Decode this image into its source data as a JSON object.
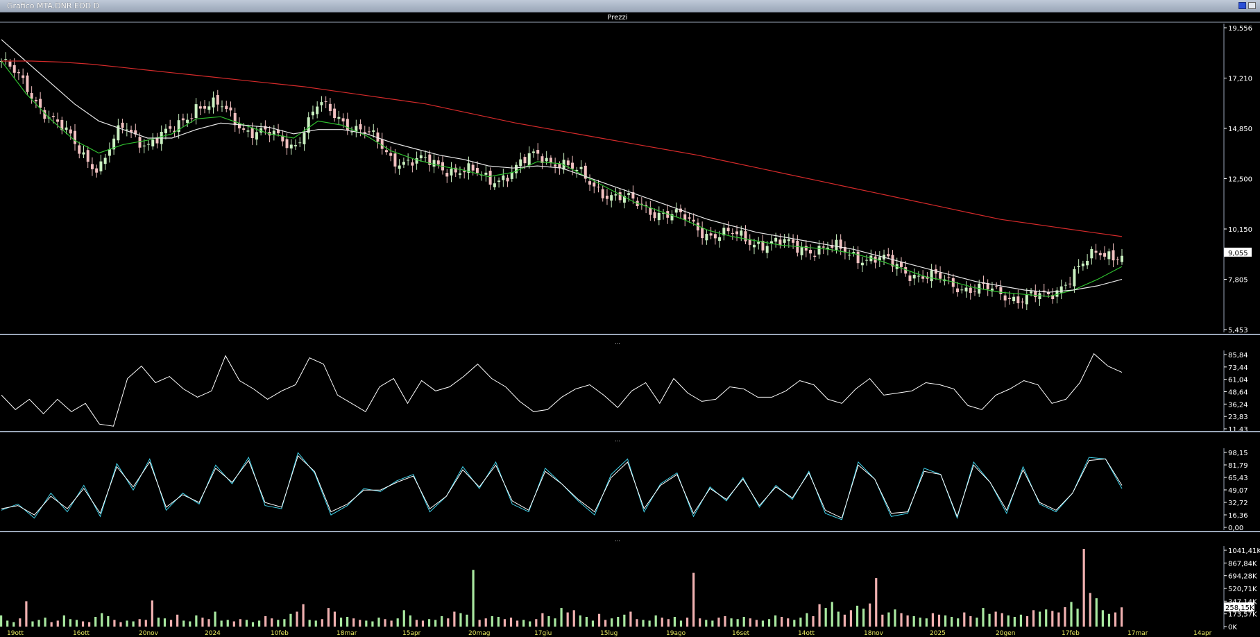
{
  "window": {
    "title": "Grafico MTA.DNR EOD D",
    "price_panel_title": "Prezzi",
    "separator_glyph": "..."
  },
  "colors": {
    "background": "#000000",
    "axis_text": "#ffffff",
    "panel_border": "#9aa6b8",
    "candle_up": "#c9f0c0",
    "candle_down": "#f1c0c0",
    "ma_short": "#2fbf2f",
    "ma_medium": "#e8e8e8",
    "ma_long": "#d42a2a",
    "oscillator_line": "#ffffff",
    "stoch_k": "#40d0e8",
    "stoch_d": "#ffffff",
    "volume_up": "#a8e8a0",
    "volume_down": "#f0b0b0",
    "date_tick": "#e8e860",
    "date_tick_alt": "#ff4040"
  },
  "chart_data": [
    {
      "type": "candlestick",
      "name": "Prezzi",
      "y_ticks": [
        "19,556",
        "17,210",
        "14,850",
        "12,500",
        "10,150",
        "7,805",
        "5,453"
      ],
      "ylim": [
        5.453,
        19.556
      ],
      "last_price_label": "9,055",
      "last_price": 9.055,
      "trend_path": [
        18.0,
        16.8,
        15.4,
        14.1,
        13.0,
        14.9,
        14.2,
        14.6,
        16.0,
        15.8,
        14.9,
        14.5,
        14.1,
        15.9,
        15.3,
        14.6,
        13.5,
        13.3,
        13.1,
        12.9,
        12.4,
        12.9,
        13.6,
        13.3,
        12.4,
        11.8,
        11.3,
        11.0,
        10.6,
        10.0,
        9.8,
        9.6,
        9.4,
        9.3,
        9.2,
        9.0,
        8.7,
        8.3,
        7.9,
        7.6,
        7.4,
        7.1,
        7.0,
        6.9,
        8.2,
        8.9,
        9.1
      ],
      "lines": [
        {
          "id": "ma_short",
          "values": [
            18.0,
            16.5,
            15.3,
            14.3,
            13.7,
            14.1,
            14.3,
            14.6,
            15.3,
            15.4,
            15.0,
            14.6,
            14.4,
            15.2,
            15.0,
            14.5,
            13.8,
            13.4,
            13.1,
            12.9,
            12.6,
            12.8,
            13.3,
            13.2,
            12.6,
            12.0,
            11.4,
            11.0,
            10.6,
            10.1,
            9.8,
            9.6,
            9.4,
            9.3,
            9.2,
            9.0,
            8.7,
            8.3,
            7.9,
            7.7,
            7.4,
            7.2,
            7.1,
            7.0,
            7.3,
            7.8,
            8.4
          ]
        },
        {
          "id": "ma_medium",
          "values": [
            19.0,
            18.0,
            17.0,
            16.0,
            15.2,
            14.8,
            14.4,
            14.4,
            14.8,
            15.1,
            15.0,
            14.9,
            14.6,
            14.8,
            14.8,
            14.6,
            14.2,
            13.9,
            13.6,
            13.4,
            13.1,
            13.0,
            13.1,
            13.0,
            12.6,
            12.2,
            11.8,
            11.4,
            11.0,
            10.6,
            10.3,
            10.0,
            9.8,
            9.6,
            9.4,
            9.2,
            8.9,
            8.6,
            8.3,
            8.0,
            7.7,
            7.5,
            7.3,
            7.2,
            7.3,
            7.5,
            7.8
          ]
        },
        {
          "id": "ma_long",
          "values": [
            18.0,
            18.0,
            17.95,
            17.85,
            17.7,
            17.55,
            17.4,
            17.25,
            17.1,
            16.95,
            16.8,
            16.6,
            16.4,
            16.2,
            16.0,
            15.7,
            15.4,
            15.1,
            14.85,
            14.6,
            14.35,
            14.1,
            13.85,
            13.6,
            13.3,
            13.0,
            12.7,
            12.4,
            12.1,
            11.8,
            11.5,
            11.2,
            10.9,
            10.6,
            10.4,
            10.2,
            10.0,
            9.8
          ]
        }
      ]
    },
    {
      "type": "line",
      "name": "oscillator",
      "y_ticks": [
        "85,84",
        "73,44",
        "61,04",
        "48,64",
        "36,24",
        "23,83",
        "11,43"
      ],
      "ylim": [
        11.43,
        85.84
      ],
      "values": [
        44,
        30,
        40,
        26,
        40,
        28,
        36,
        16,
        14,
        60,
        72,
        56,
        62,
        50,
        42,
        48,
        82,
        58,
        50,
        40,
        48,
        54,
        80,
        74,
        44,
        36,
        28,
        52,
        60,
        36,
        58,
        48,
        52,
        62,
        74,
        60,
        52,
        38,
        28,
        30,
        42,
        50,
        54,
        44,
        32,
        48,
        56,
        36,
        60,
        46,
        38,
        40,
        52,
        50,
        42,
        42,
        48,
        58,
        54,
        40,
        36,
        50,
        60,
        44,
        46,
        48,
        56,
        54,
        50,
        34,
        30,
        44,
        50,
        58,
        54,
        36,
        40,
        56,
        84,
        72,
        66
      ]
    },
    {
      "type": "line",
      "name": "stochastic",
      "y_ticks": [
        "98,15",
        "81,79",
        "65,43",
        "49,07",
        "32,72",
        "16,36",
        "0,00"
      ],
      "ylim": [
        0,
        98.15
      ],
      "series": [
        {
          "id": "k",
          "values": [
            22,
            30,
            12,
            44,
            20,
            54,
            14,
            82,
            48,
            88,
            22,
            44,
            30,
            80,
            56,
            90,
            28,
            24,
            96,
            70,
            16,
            28,
            50,
            46,
            60,
            68,
            20,
            40,
            78,
            50,
            84,
            30,
            20,
            76,
            56,
            34,
            16,
            68,
            88,
            20,
            56,
            70,
            14,
            52,
            34,
            64,
            26,
            54,
            36,
            72,
            18,
            10,
            84,
            62,
            14,
            18,
            76,
            68,
            12,
            84,
            58,
            18,
            78,
            30,
            20,
            44,
            90,
            88,
            50
          ]
        },
        {
          "id": "d",
          "values": [
            24,
            28,
            16,
            40,
            24,
            50,
            18,
            78,
            52,
            84,
            26,
            42,
            32,
            76,
            58,
            86,
            32,
            26,
            92,
            72,
            20,
            30,
            48,
            48,
            58,
            66,
            24,
            40,
            74,
            52,
            80,
            34,
            22,
            72,
            56,
            36,
            20,
            64,
            84,
            24,
            54,
            68,
            18,
            50,
            36,
            62,
            28,
            52,
            38,
            70,
            22,
            12,
            80,
            62,
            18,
            20,
            72,
            68,
            14,
            80,
            58,
            22,
            74,
            32,
            22,
            44,
            86,
            88,
            54
          ]
        }
      ]
    },
    {
      "type": "bar",
      "name": "volume",
      "y_ticks": [
        "1041,41K",
        "867,84K",
        "694,28K",
        "520,71K",
        "347,14K",
        "173,57K",
        "0K"
      ],
      "ylim": [
        0,
        1041.41
      ],
      "last_volume_label": "258,15K",
      "last_volume": 258.15,
      "values": [
        150,
        80,
        60,
        110,
        340,
        70,
        90,
        120,
        60,
        80,
        150,
        100,
        90,
        70,
        60,
        130,
        180,
        140,
        90,
        60,
        80,
        70,
        100,
        90,
        350,
        120,
        110,
        90,
        160,
        80,
        70,
        150,
        120,
        100,
        200,
        80,
        90,
        70,
        100,
        90,
        60,
        80,
        140,
        110,
        90,
        100,
        170,
        200,
        300,
        90,
        80,
        100,
        250,
        200,
        120,
        130,
        110,
        90,
        80,
        70,
        120,
        100,
        80,
        110,
        220,
        150,
        90,
        80,
        100,
        90,
        140,
        110,
        200,
        180,
        160,
        760,
        90,
        110,
        140,
        130,
        100,
        120,
        80,
        90,
        70,
        100,
        180,
        140,
        110,
        250,
        190,
        220,
        150,
        130,
        80,
        170,
        90,
        110,
        130,
        160,
        200,
        100,
        90,
        80,
        150,
        120,
        100,
        130,
        80,
        120,
        720,
        110,
        90,
        80,
        120,
        140,
        110,
        100,
        130,
        110,
        90,
        80,
        100,
        150,
        130,
        110,
        90,
        120,
        180,
        140,
        300,
        250,
        330,
        200,
        160,
        220,
        280,
        240,
        310,
        650,
        160,
        190,
        230,
        180,
        150,
        140,
        120,
        110,
        180,
        160,
        150,
        130,
        110,
        190,
        140,
        120,
        250,
        170,
        200,
        180,
        150,
        130,
        160,
        140,
        220,
        200,
        230,
        210,
        190,
        260,
        330,
        240,
        1041,
        450,
        380,
        220,
        170,
        190,
        258
      ],
      "x_tick_labels": [
        "19ott",
        "16ott",
        "20nov",
        "2024",
        "10feb",
        "18mar",
        "15apr",
        "20mag",
        "17giu",
        "15lug",
        "19ago",
        "16set",
        "14ott",
        "18nov",
        "2025",
        "20gen",
        "17feb",
        "17mar",
        "14apr"
      ]
    }
  ]
}
